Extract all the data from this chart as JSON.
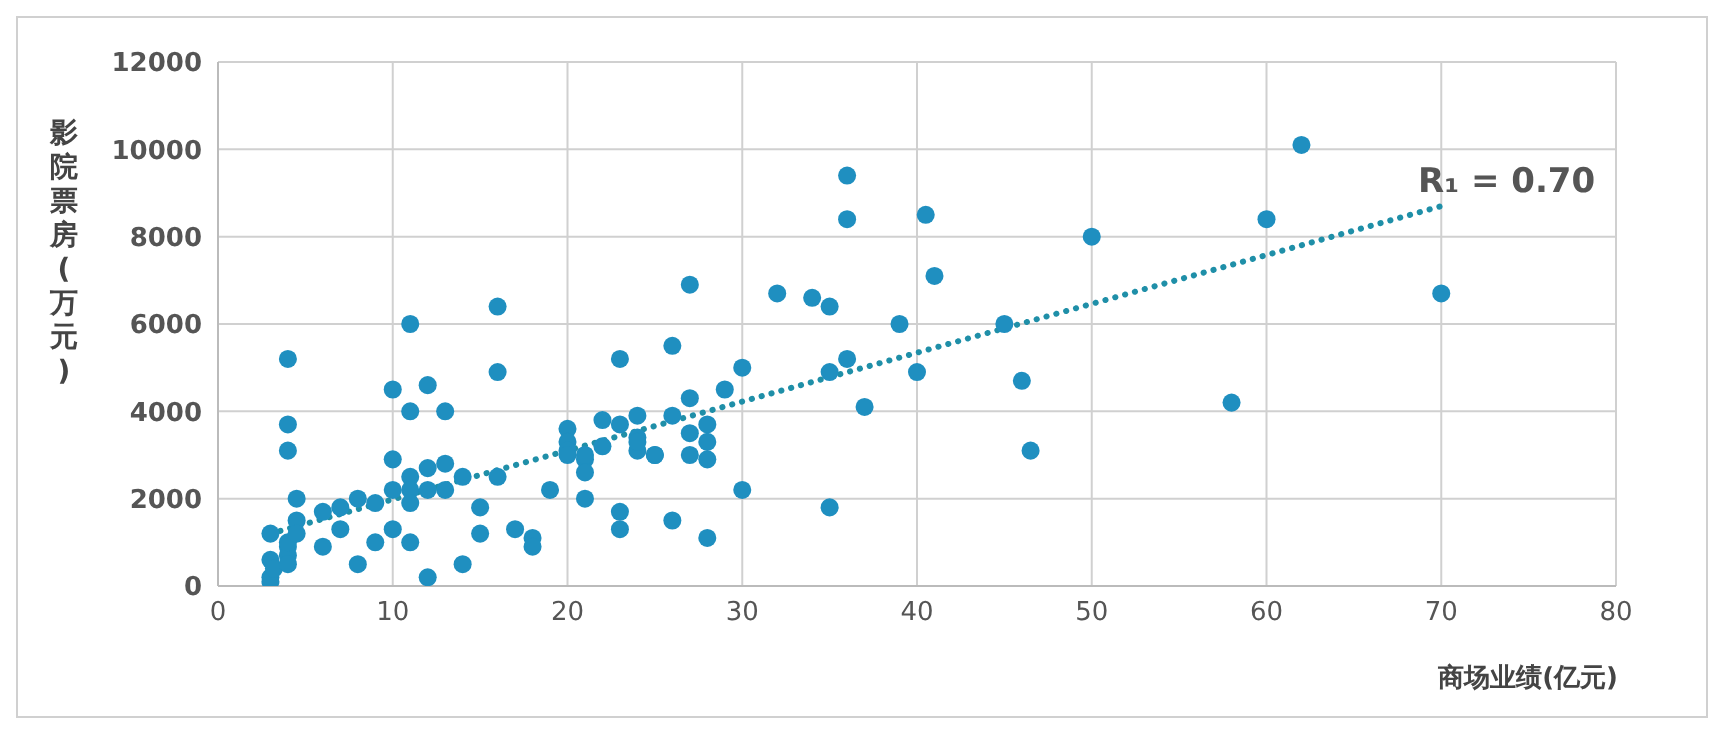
{
  "chart_data": {
    "type": "scatter",
    "xlabel": "商场业绩(亿元)",
    "ylabel": "影院票房(万元)",
    "xlim": [
      0,
      80
    ],
    "xticks": [
      0,
      10,
      20,
      30,
      40,
      50,
      60,
      70,
      80
    ],
    "ylim": [
      0,
      12000
    ],
    "yticks": [
      0,
      2000,
      4000,
      6000,
      8000,
      10000,
      12000
    ],
    "grid": true,
    "marker": "circle",
    "series": [
      {
        "color": "#1f8fc0",
        "x": [
          3,
          3,
          3,
          3,
          3.2,
          4,
          4,
          4,
          4,
          4,
          4,
          4,
          4.5,
          4.5,
          4.5,
          6,
          6,
          7,
          7,
          8,
          8,
          9,
          9,
          10,
          10,
          10,
          10,
          11,
          11,
          11,
          11,
          11,
          11,
          12,
          12,
          12,
          12,
          13,
          13,
          13,
          14,
          14,
          15,
          15,
          16,
          16,
          16,
          17,
          18,
          18,
          19,
          20,
          20,
          20,
          20,
          21,
          21,
          21,
          21,
          22,
          22,
          23,
          23,
          23,
          23,
          24,
          24,
          24,
          24,
          25,
          25,
          26,
          26,
          26,
          27,
          27,
          27,
          27,
          28,
          28,
          28,
          28,
          29,
          30,
          30,
          32,
          34,
          35,
          35,
          35,
          36,
          36,
          36,
          37,
          39,
          40,
          40.5,
          41,
          45,
          46,
          46.5,
          50,
          58,
          60,
          62,
          70
        ],
        "values": [
          1200,
          600,
          200,
          100,
          400,
          5200,
          3700,
          3100,
          900,
          700,
          500,
          1000,
          2000,
          1500,
          1200,
          900,
          1700,
          1300,
          1800,
          500,
          2000,
          1000,
          1900,
          4500,
          2900,
          1300,
          2200,
          6000,
          4000,
          2500,
          2200,
          1900,
          1000,
          4600,
          2700,
          2200,
          200,
          4000,
          2800,
          2200,
          500,
          2500,
          1800,
          1200,
          6400,
          4900,
          2500,
          1300,
          1100,
          900,
          2200,
          3600,
          3300,
          3100,
          3000,
          2900,
          2600,
          3000,
          2000,
          3800,
          3200,
          5200,
          3700,
          1700,
          1300,
          3900,
          3400,
          3100,
          3300,
          3000,
          3000,
          5500,
          3900,
          1500,
          6900,
          4300,
          3500,
          3000,
          3700,
          3300,
          1100,
          2900,
          4500,
          5000,
          2200,
          6700,
          6600,
          6400,
          1800,
          4900,
          9400,
          8400,
          5200,
          4100,
          6000,
          4900,
          8500,
          7100,
          6000,
          4700,
          3100,
          8000,
          4200,
          8400,
          10100,
          6700
        ]
      },
      {
        "type": "line",
        "color": "#1f8fa8",
        "line_style": "dotted",
        "marker": "none",
        "x": [
          3,
          70
        ],
        "values": [
          1200,
          8700
        ]
      }
    ],
    "annotations": [
      "R₁ = 0.70"
    ]
  }
}
